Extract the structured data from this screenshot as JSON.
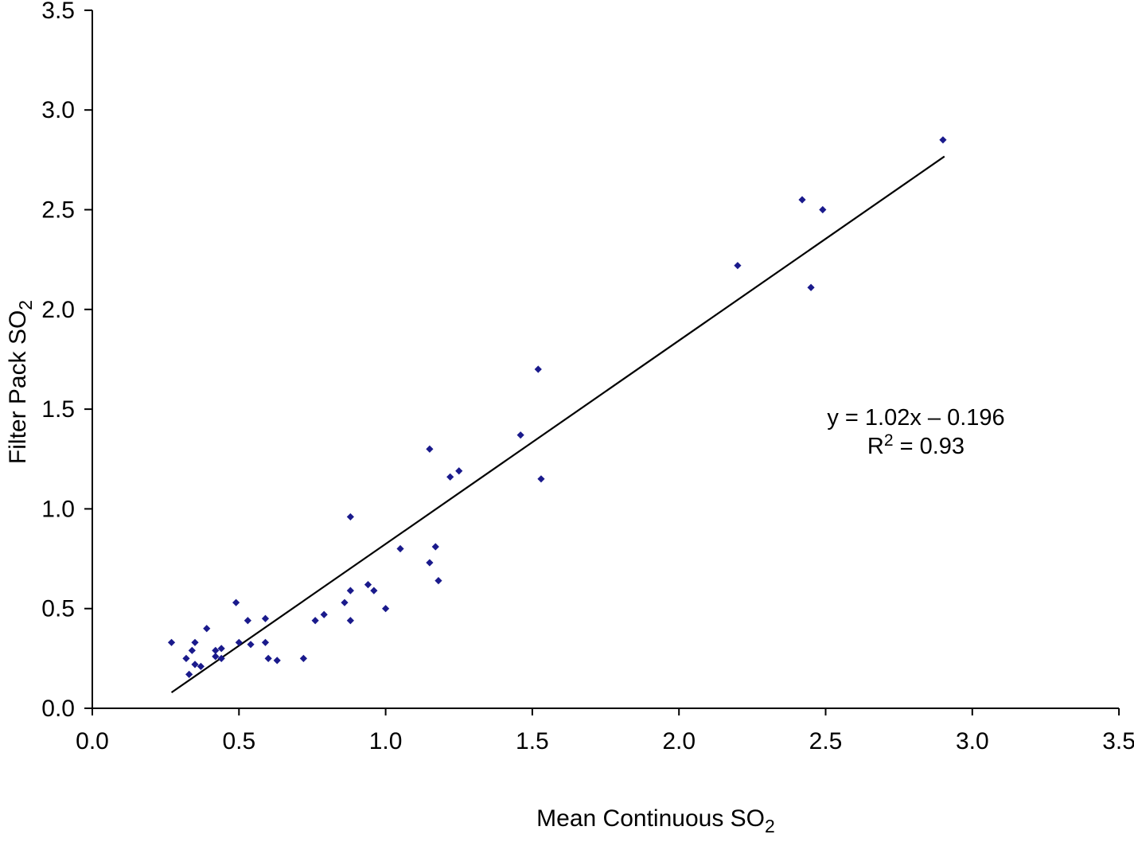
{
  "chart_data": {
    "type": "scatter",
    "title": "",
    "xlabel": "Mean Continuous SO2",
    "ylabel": "Filter Pack SO2",
    "xlabel_parts": [
      {
        "t": "Mean Continuous SO",
        "sub": false
      },
      {
        "t": "2",
        "sub": true
      }
    ],
    "ylabel_parts": [
      {
        "t": "Filter Pack SO",
        "sub": false
      },
      {
        "t": "2",
        "sub": true
      }
    ],
    "xlim": [
      0.0,
      3.5
    ],
    "ylim": [
      0.0,
      3.5
    ],
    "xtick_labels": [
      "0.0",
      "0.5",
      "1.0",
      "1.5",
      "2.0",
      "2.5",
      "3.0",
      "3.5"
    ],
    "ytick_labels": [
      "0.0",
      "0.5",
      "1.0",
      "1.5",
      "2.0",
      "2.5",
      "3.0",
      "3.5"
    ],
    "xtick_values": [
      0.0,
      0.5,
      1.0,
      1.5,
      2.0,
      2.5,
      3.0,
      3.5
    ],
    "ytick_values": [
      0.0,
      0.5,
      1.0,
      1.5,
      2.0,
      2.5,
      3.0,
      3.5
    ],
    "grid": false,
    "legend": false,
    "marker_shape": "diamond",
    "marker_color": "#1a1a8c",
    "axis_color": "#000000",
    "trendline_color": "#000000",
    "points": [
      [
        0.27,
        0.33
      ],
      [
        0.32,
        0.25
      ],
      [
        0.33,
        0.17
      ],
      [
        0.34,
        0.29
      ],
      [
        0.35,
        0.33
      ],
      [
        0.35,
        0.22
      ],
      [
        0.37,
        0.21
      ],
      [
        0.39,
        0.4
      ],
      [
        0.42,
        0.29
      ],
      [
        0.44,
        0.3
      ],
      [
        0.42,
        0.26
      ],
      [
        0.44,
        0.25
      ],
      [
        0.49,
        0.53
      ],
      [
        0.5,
        0.33
      ],
      [
        0.53,
        0.44
      ],
      [
        0.54,
        0.32
      ],
      [
        0.59,
        0.45
      ],
      [
        0.59,
        0.33
      ],
      [
        0.6,
        0.25
      ],
      [
        0.63,
        0.24
      ],
      [
        0.72,
        0.25
      ],
      [
        0.76,
        0.44
      ],
      [
        0.79,
        0.47
      ],
      [
        0.86,
        0.53
      ],
      [
        0.88,
        0.59
      ],
      [
        0.88,
        0.44
      ],
      [
        0.88,
        0.96
      ],
      [
        0.94,
        0.62
      ],
      [
        0.96,
        0.59
      ],
      [
        1.0,
        0.5
      ],
      [
        1.05,
        0.8
      ],
      [
        1.15,
        1.3
      ],
      [
        1.15,
        0.73
      ],
      [
        1.17,
        0.81
      ],
      [
        1.18,
        0.64
      ],
      [
        1.22,
        1.16
      ],
      [
        1.25,
        1.19
      ],
      [
        1.46,
        1.37
      ],
      [
        1.52,
        1.7
      ],
      [
        1.53,
        1.15
      ],
      [
        2.2,
        2.22
      ],
      [
        2.42,
        2.55
      ],
      [
        2.45,
        2.11
      ],
      [
        2.49,
        2.5
      ],
      [
        2.9,
        2.85
      ]
    ],
    "trendline": {
      "slope": 1.02,
      "intercept": -0.196,
      "x_start": 0.27,
      "x_end": 2.905
    },
    "annotation": {
      "line1": "y = 1.02x – 0.196",
      "line2_prefix": "R",
      "line2_sup": "2",
      "line2_suffix": " = 0.93",
      "r_squared": 0.93
    }
  }
}
